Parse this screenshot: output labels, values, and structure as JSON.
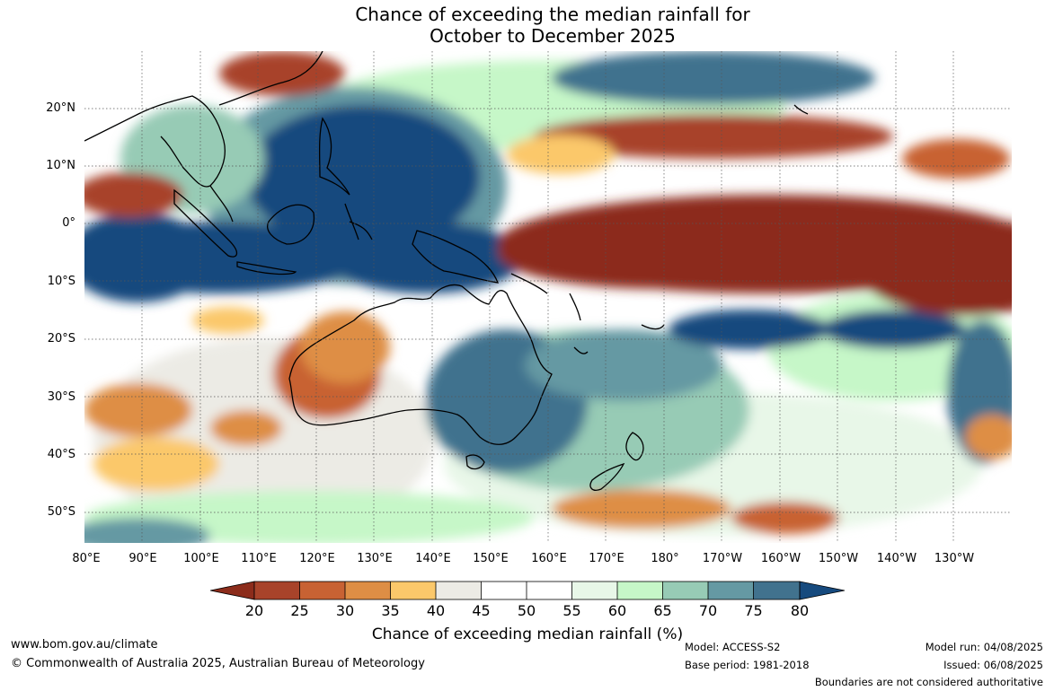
{
  "title": {
    "line1": "Chance of exceeding the median rainfall for",
    "line2": "October to December 2025"
  },
  "map": {
    "lat_labels": [
      "20°N",
      "10°N",
      "0°",
      "10°S",
      "20°S",
      "30°S",
      "40°S",
      "50°S"
    ],
    "lon_labels": [
      "80°E",
      "90°E",
      "100°E",
      "110°E",
      "120°E",
      "130°E",
      "140°E",
      "150°E",
      "160°E",
      "170°E",
      "180°",
      "170°W",
      "160°W",
      "150°W",
      "140°W",
      "130°W"
    ],
    "grid": "dotted"
  },
  "legend": {
    "title": "Chance of exceeding median rainfall (%)",
    "ticks": [
      "20",
      "25",
      "30",
      "35",
      "40",
      "45",
      "50",
      "55",
      "60",
      "65",
      "70",
      "75",
      "80"
    ],
    "colors": [
      "#8c2c1b",
      "#a8432a",
      "#c86233",
      "#de8e45",
      "#fbc86a",
      "#ecebe5",
      "#ffffff",
      "#ffffff",
      "#e8f7e8",
      "#c6f7c8",
      "#97cbb5",
      "#6599a3",
      "#41728e",
      "#164a7e"
    ]
  },
  "footer": {
    "website": "www.bom.gov.au/climate",
    "copyright": "© Commonwealth of Australia 2025, Australian Bureau of Meteorology",
    "model": "Model: ACCESS-S2",
    "base_period": "Base period: 1981-2018",
    "model_run": "Model run: 04/08/2025",
    "issued": "Issued: 06/08/2025",
    "disclaimer": "Boundaries are not considered authoritative"
  },
  "colors": {
    "dry_strong": "#8c2c1b",
    "dry": "#c86233",
    "dry_light": "#fbc86a",
    "neutral": "#ecebe5",
    "wet_light": "#c6f7c8",
    "wet": "#6599a3",
    "wet_strong": "#164a7e"
  }
}
